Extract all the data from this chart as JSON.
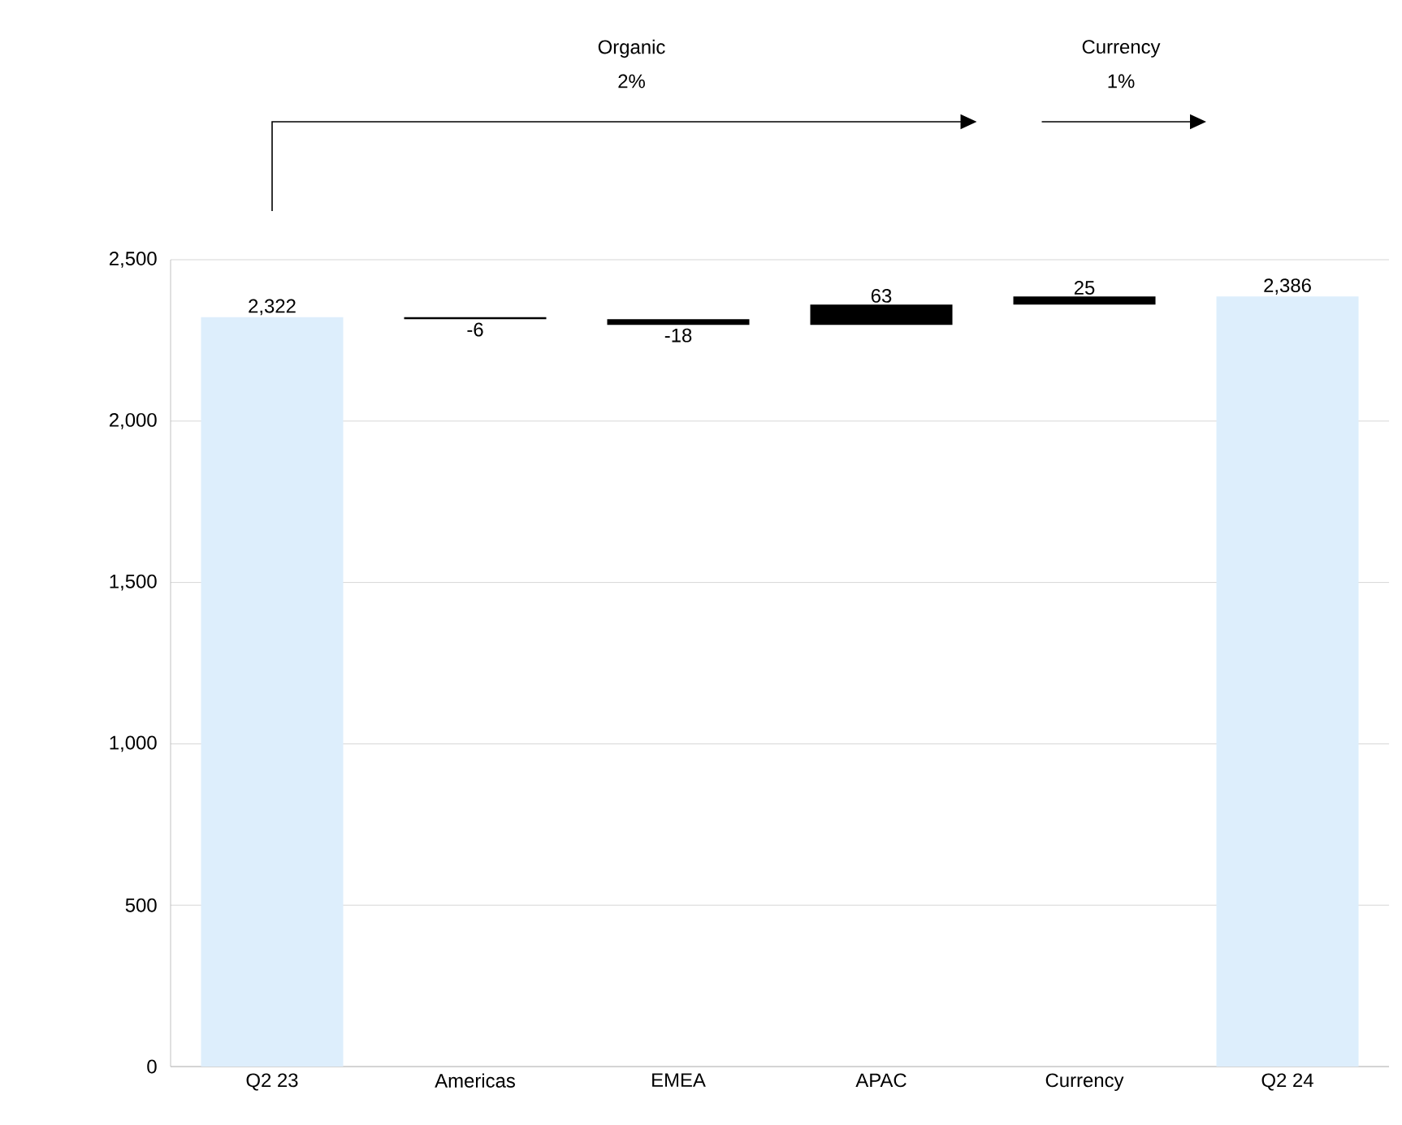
{
  "chart_data": {
    "type": "bar",
    "categories": [
      "Q2 23",
      "Americas",
      "EMEA",
      "APAC",
      "Currency",
      "Q2 24"
    ],
    "values": [
      2322,
      -6,
      -18,
      63,
      25,
      2386
    ],
    "base": [
      0,
      2322,
      2316,
      2298,
      2361,
      0
    ],
    "colors": [
      "#ddeefc",
      "#000000",
      "#000000",
      "#000000",
      "#000000",
      "#ddeefc"
    ],
    "value_labels": [
      "2,322",
      "-6",
      "-18",
      "63",
      "25",
      "2,386"
    ],
    "ylim": [
      0,
      2500
    ],
    "yticks": [
      0,
      {
        "value": 500,
        "label": "500"
      },
      {
        "value": 1000,
        "label": "1,000"
      },
      {
        "value": 1500,
        "label": "1,500"
      },
      {
        "value": 2000,
        "label": "2,000"
      },
      {
        "value": 2500,
        "label": "2,500"
      }
    ],
    "grid": "y",
    "annotations": [
      "Organic",
      "2%",
      "Currency",
      "1%"
    ]
  }
}
